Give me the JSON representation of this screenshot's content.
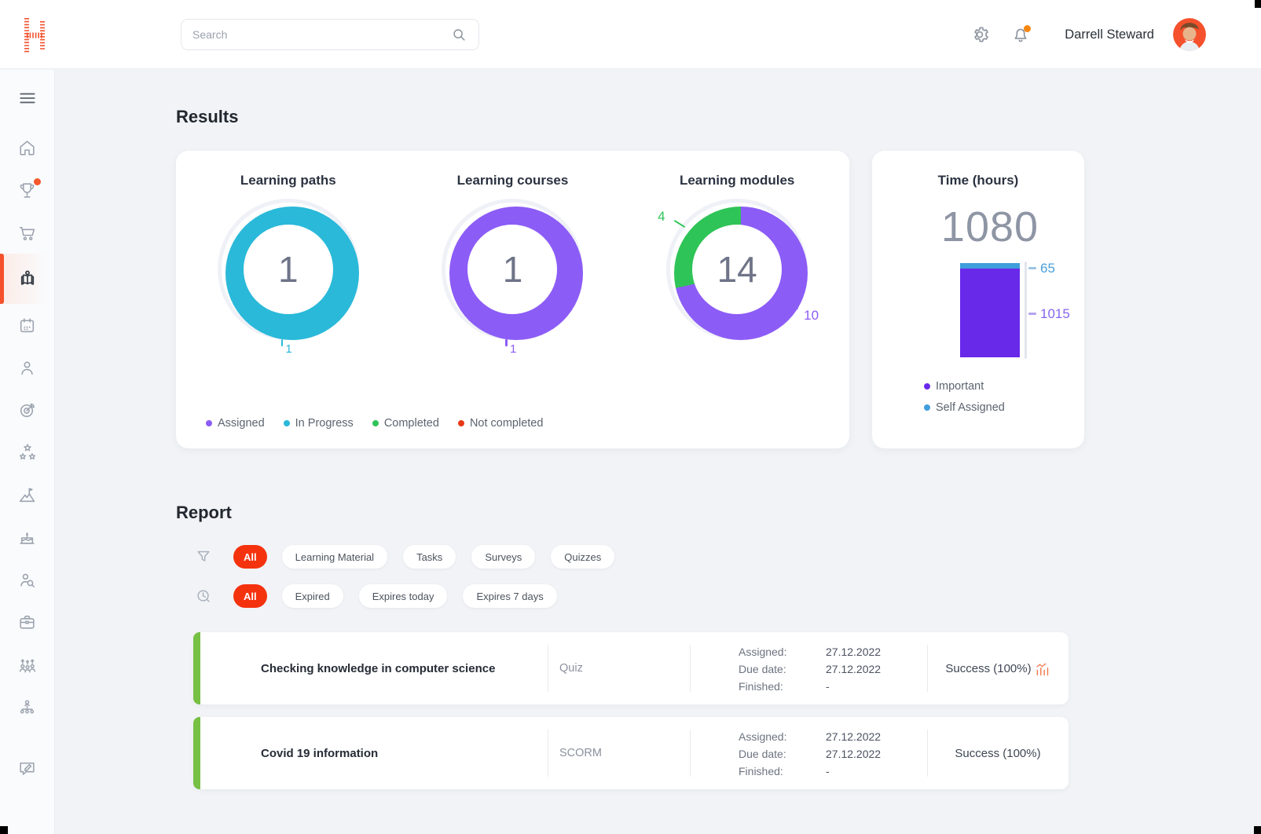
{
  "colors": {
    "accent_orange": "#f4512c",
    "pill_red": "#f5320e",
    "bell_dot": "#f5870f",
    "trophy_dot": "#f4582c",
    "cyan": "#2ab9d9",
    "purple": "#8c5cf6",
    "vivid_purple": "#6929e9",
    "blue": "#3f9edb",
    "green": "#2fc457",
    "red": "#e73a17",
    "row_accent_green": "#76c043",
    "label_blue": "#4aa0da",
    "label_purple": "#8566ef",
    "tick_blue": "#9fc4e4",
    "tick_purple": "#b5a4ee"
  },
  "topbar": {
    "search_placeholder": "Search",
    "user_name": "Darrell Steward",
    "icons": [
      "logo-h",
      "search-icon",
      "gear-icon",
      "bell-icon",
      "avatar"
    ]
  },
  "sidebar": {
    "icons": [
      "menu-icon",
      "home-icon",
      "trophy-icon",
      "cart-icon",
      "book-reader-icon",
      "calendar-icon",
      "user-icon",
      "target-icon",
      "stars-icon",
      "mountain-flag-icon",
      "cake-icon",
      "user-search-icon",
      "briefcase-icon",
      "team-growth-icon",
      "org-chart-icon",
      "message-edit-icon"
    ],
    "active_item": "book-reader"
  },
  "results": {
    "title": "Results",
    "legend": [
      {
        "label": "Assigned",
        "color": "#8c5cf6"
      },
      {
        "label": "In Progress",
        "color": "#2ab9d9"
      },
      {
        "label": "Completed",
        "color": "#2fc457"
      },
      {
        "label": "Not completed",
        "color": "#e73a17"
      }
    ]
  },
  "chart_data": [
    {
      "type": "donut",
      "title": "Learning paths",
      "center_value": "1",
      "tick_label": "1",
      "segments": [
        {
          "label": "In Progress",
          "value": 1,
          "color": "#2ab9d9"
        }
      ]
    },
    {
      "type": "donut",
      "title": "Learning courses",
      "center_value": "1",
      "tick_label": "1",
      "segments": [
        {
          "label": "Assigned",
          "value": 1,
          "color": "#8c5cf6"
        }
      ]
    },
    {
      "type": "donut",
      "title": "Learning modules",
      "center_value": "14",
      "callouts": [
        {
          "label": "4",
          "color": "#2fc457"
        },
        {
          "label": "10",
          "color": "#8c5cf6"
        }
      ],
      "segments": [
        {
          "label": "Completed",
          "value": 4,
          "color": "#2fc457"
        },
        {
          "label": "Assigned",
          "value": 10,
          "color": "#8c5cf6"
        }
      ]
    },
    {
      "type": "stacked-bar",
      "title": "Time (hours)",
      "total": 1080,
      "total_label": "1080",
      "ylabels": [
        "65",
        "1015"
      ],
      "segments": [
        {
          "label": "Self Assigned",
          "value": 65,
          "color": "#3f9edb"
        },
        {
          "label": "Important",
          "value": 1015,
          "color": "#6929e9"
        }
      ],
      "legend": [
        {
          "label": "Important",
          "color": "#6929e9"
        },
        {
          "label": "Self Assigned",
          "color": "#3f9edb"
        }
      ]
    }
  ],
  "report": {
    "title": "Report",
    "type_filter": {
      "all_label": "All",
      "options": [
        "Learning Material",
        "Tasks",
        "Surveys",
        "Quizzes"
      ],
      "icon": "funnel-icon"
    },
    "expiry_filter": {
      "all_label": "All",
      "options": [
        "Expired",
        "Expires today",
        "Expires 7 days"
      ],
      "icon": "clock-icon"
    },
    "labels": {
      "assigned": "Assigned:",
      "due": "Due date:",
      "finished": "Finished:"
    },
    "rows": [
      {
        "title": "Checking knowledge in computer science",
        "type": "Quiz",
        "assigned": "27.12.2022",
        "due": "27.12.2022",
        "finished": "-",
        "result": "Success (100%)",
        "result_icon": "analytics-chart-icon"
      },
      {
        "title": "Covid 19 information",
        "type": "SCORM",
        "assigned": "27.12.2022",
        "due": "27.12.2022",
        "finished": "-",
        "result": "Success (100%)",
        "result_icon": ""
      }
    ]
  }
}
